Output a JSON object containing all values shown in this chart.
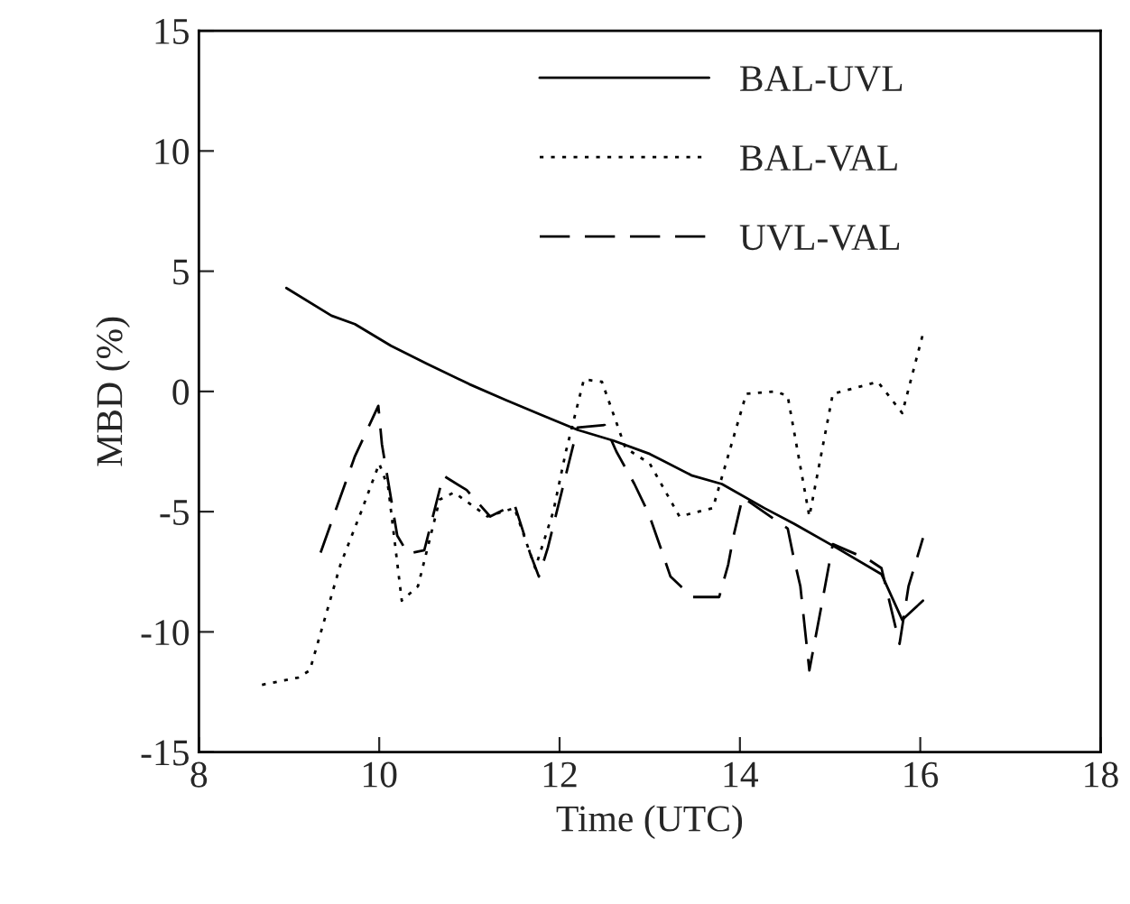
{
  "chart_data": {
    "type": "line",
    "xlabel": "Time (UTC)",
    "ylabel": "MBD (%)",
    "xlim": [
      8,
      18
    ],
    "xticks": [
      8,
      10,
      12,
      14,
      16,
      18
    ],
    "ylim": [
      -15,
      15
    ],
    "yticks": [
      -15,
      -10,
      -5,
      0,
      5,
      10,
      15
    ],
    "grid": false,
    "legend": "top",
    "marker": "none",
    "series": [
      {
        "name": "BAL-UVL",
        "color": "#000000",
        "line_style": "solid",
        "x": [
          8.97,
          9.47,
          9.73,
          10.13,
          10.53,
          11.0,
          11.4,
          11.8,
          12.2,
          12.6,
          13.0,
          13.47,
          13.8,
          14.27,
          14.6,
          15.07,
          15.57,
          15.8,
          16.03
        ],
        "values": [
          4.3,
          3.15,
          2.8,
          1.9,
          1.15,
          0.3,
          -0.35,
          -0.98,
          -1.6,
          -2.05,
          -2.6,
          -3.5,
          -3.85,
          -4.85,
          -5.5,
          -6.5,
          -7.6,
          -9.5,
          -8.7
        ]
      },
      {
        "name": "BAL-VAL",
        "color": "#000000",
        "line_style": "dotted",
        "x": [
          8.7,
          9.1,
          9.23,
          9.57,
          9.8,
          10.0,
          10.1,
          10.25,
          10.43,
          10.67,
          10.83,
          11.2,
          11.5,
          11.73,
          11.93,
          12.07,
          12.27,
          12.47,
          12.73,
          13.0,
          13.33,
          13.7,
          14.07,
          14.4,
          14.53,
          14.77,
          15.03,
          15.53,
          15.8,
          16.03
        ],
        "values": [
          -12.2,
          -11.9,
          -11.6,
          -7.2,
          -5.0,
          -3.0,
          -4.0,
          -8.7,
          -8.1,
          -4.5,
          -4.2,
          -5.2,
          -4.85,
          -7.35,
          -5.0,
          -2.5,
          0.5,
          0.4,
          -2.35,
          -3.0,
          -5.2,
          -4.85,
          -0.1,
          0.0,
          -0.2,
          -5.2,
          -0.1,
          0.4,
          -0.9,
          2.4
        ]
      },
      {
        "name": "UVL-VAL",
        "color": "#000000",
        "line_style": "dashed",
        "x": [
          9.35,
          9.73,
          9.99,
          10.03,
          10.2,
          10.32,
          10.5,
          10.71,
          10.97,
          11.23,
          11.5,
          11.67,
          11.77,
          11.87,
          12.2,
          12.5,
          12.63,
          12.83,
          12.99,
          13.13,
          13.23,
          13.47,
          13.77,
          13.87,
          13.93,
          14.03,
          14.53,
          14.59,
          14.67,
          14.77,
          14.9,
          15.03,
          15.43,
          15.57,
          15.77,
          15.87,
          16.03
        ],
        "values": [
          -6.7,
          -2.7,
          -0.6,
          -2.2,
          -6.0,
          -6.75,
          -6.6,
          -3.5,
          -4.1,
          -5.2,
          -4.7,
          -6.7,
          -7.7,
          -6.5,
          -1.5,
          -1.4,
          -2.5,
          -3.85,
          -5.1,
          -6.6,
          -7.7,
          -8.55,
          -8.55,
          -7.2,
          -6.0,
          -4.4,
          -5.7,
          -6.8,
          -8.1,
          -11.6,
          -9.0,
          -6.35,
          -7.0,
          -7.35,
          -10.5,
          -8.1,
          -6.1
        ]
      }
    ]
  }
}
